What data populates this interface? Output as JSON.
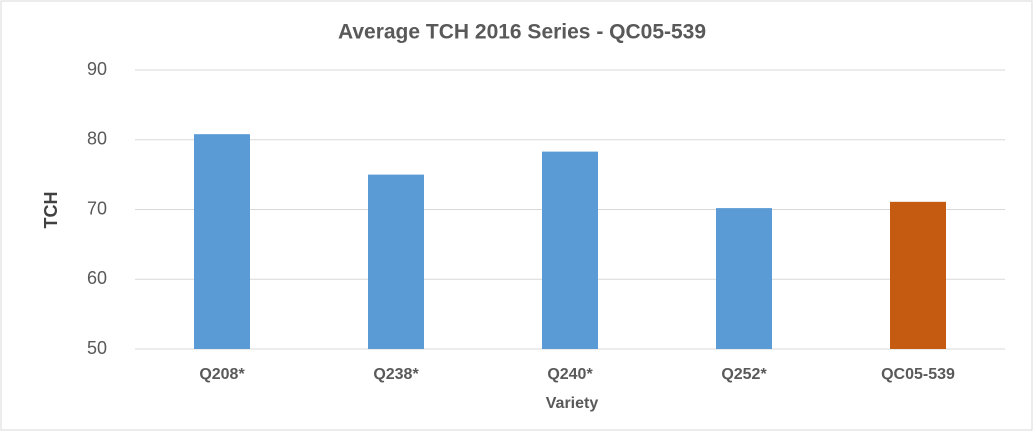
{
  "chart_data": {
    "type": "bar",
    "title": "Average TCH 2016 Series - QC05-539",
    "x_label": "Variety",
    "y_label": "TCH",
    "categories": [
      "Q208*",
      "Q238*",
      "Q240*",
      "Q252*",
      "QC05-539"
    ],
    "values": [
      80.8,
      75,
      78.3,
      70.2,
      71.1
    ],
    "colors": [
      "#5b9bd5",
      "#5b9bd5",
      "#5b9bd5",
      "#5b9bd5",
      "#c55a11"
    ],
    "ylim": [
      50,
      90
    ],
    "yticks": [
      50,
      60,
      70,
      80,
      90
    ],
    "grid": true
  }
}
